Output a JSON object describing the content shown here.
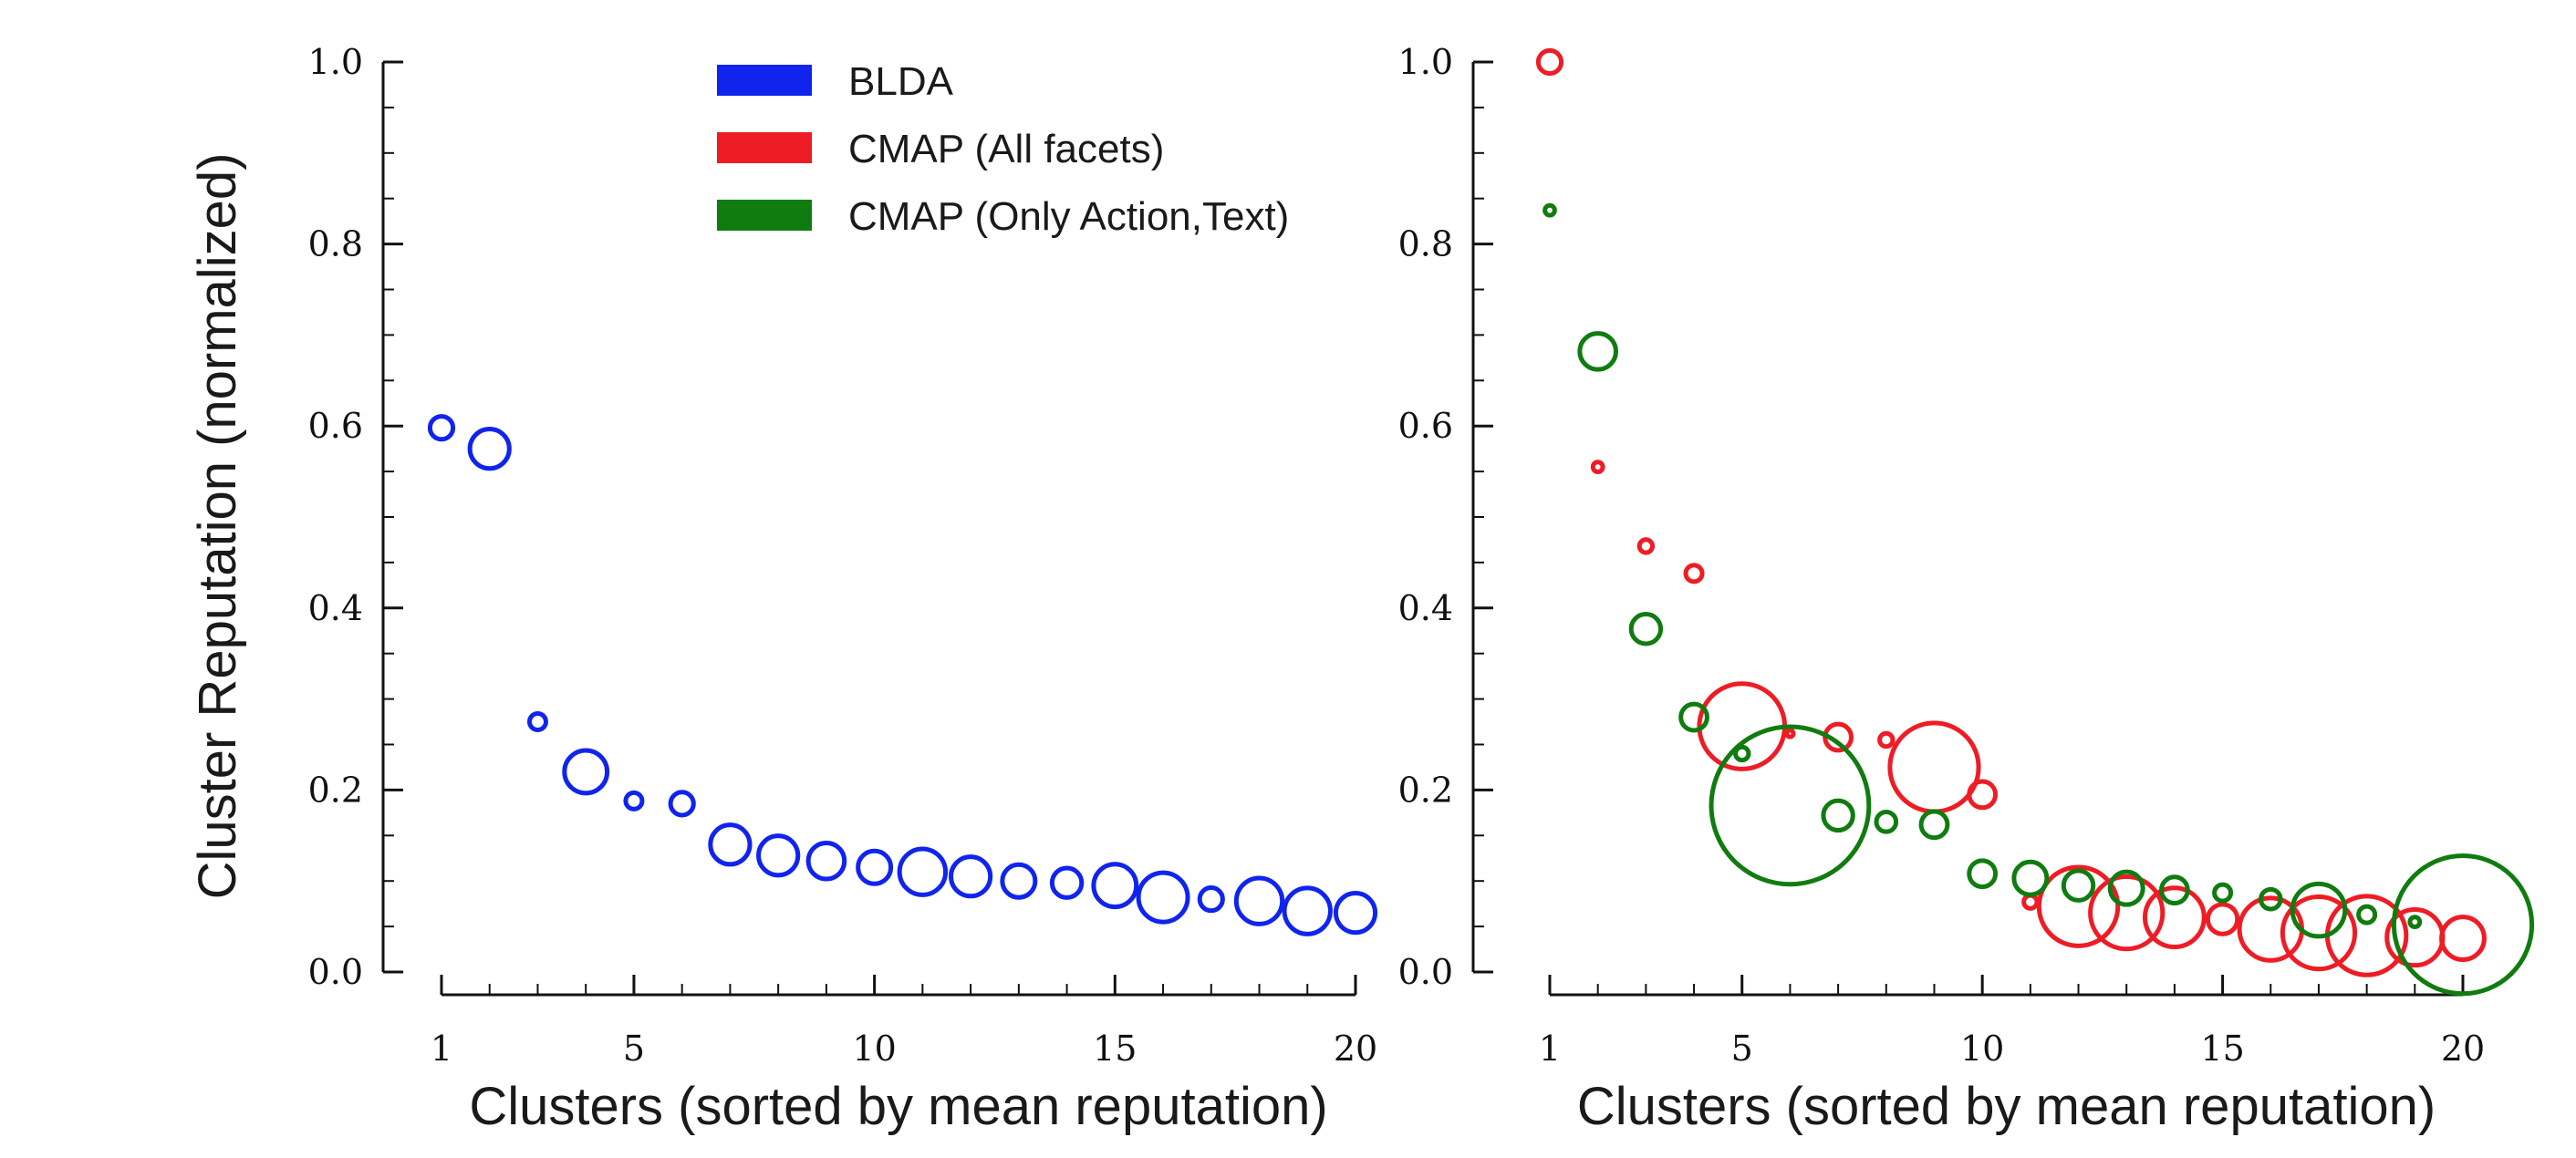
{
  "chart_data": [
    {
      "type": "scatter",
      "xlabel": "Clusters (sorted by mean reputation)",
      "ylabel": "Cluster Reputation (normalized)",
      "xlim": [
        1,
        20
      ],
      "ylim": [
        0,
        1
      ],
      "x_ticks": [
        "1",
        "5",
        "10",
        "15",
        "20"
      ],
      "y_ticks": [
        "0.0",
        "0.2",
        "0.4",
        "0.6",
        "0.8",
        "1.0"
      ],
      "legend": {
        "placement": "top-right",
        "entries": [
          {
            "label": "BLDA",
            "color": "#1024ee"
          },
          {
            "label": "CMAP (All facets)",
            "color": "#ee1c24"
          },
          {
            "label": "CMAP (Only Action,Text)",
            "color": "#107c10"
          }
        ]
      },
      "series": [
        {
          "name": "BLDA",
          "color": "#1024ee",
          "marker": "open-circle",
          "x": [
            1,
            2,
            3,
            4,
            5,
            6,
            7,
            8,
            9,
            10,
            11,
            12,
            13,
            14,
            15,
            16,
            17,
            18,
            19,
            20
          ],
          "y": [
            0.598,
            0.575,
            0.275,
            0.22,
            0.188,
            0.185,
            0.14,
            0.128,
            0.122,
            0.115,
            0.11,
            0.105,
            0.1,
            0.098,
            0.095,
            0.082,
            0.08,
            0.078,
            0.067,
            0.065
          ],
          "size": [
            7,
            12,
            5,
            13,
            5,
            7,
            12,
            12,
            11,
            10,
            14,
            12,
            10,
            9,
            13,
            15,
            7,
            14,
            14,
            12
          ]
        }
      ]
    },
    {
      "type": "scatter",
      "xlabel": "Clusters (sorted by mean reputation)",
      "ylabel": "",
      "xlim": [
        1,
        20
      ],
      "ylim": [
        0,
        1
      ],
      "x_ticks": [
        "1",
        "5",
        "10",
        "15",
        "20"
      ],
      "y_ticks": [
        "0.0",
        "0.2",
        "0.4",
        "0.6",
        "0.8",
        "1.0"
      ],
      "series": [
        {
          "name": "CMAP (All facets)",
          "color": "#ee1c24",
          "marker": "open-circle",
          "x": [
            1,
            2,
            3,
            4,
            5,
            6,
            7,
            8,
            9,
            10,
            11,
            12,
            13,
            14,
            15,
            16,
            17,
            18,
            19,
            20
          ],
          "y": [
            1.0,
            0.555,
            0.468,
            0.438,
            0.27,
            0.262,
            0.258,
            0.255,
            0.225,
            0.195,
            0.077,
            0.072,
            0.065,
            0.06,
            0.058,
            0.047,
            0.043,
            0.04,
            0.038,
            0.037
          ],
          "size": [
            7,
            3,
            4,
            5,
            26,
            2,
            8,
            4,
            27,
            8,
            4,
            24,
            22,
            18,
            9,
            19,
            22,
            24,
            17,
            13
          ]
        },
        {
          "name": "CMAP (Only Action,Text)",
          "color": "#107c10",
          "marker": "open-circle",
          "x": [
            1,
            2,
            3,
            4,
            5,
            6,
            7,
            8,
            9,
            10,
            11,
            12,
            13,
            14,
            15,
            16,
            17,
            18,
            19,
            20
          ],
          "y": [
            0.837,
            0.682,
            0.377,
            0.28,
            0.24,
            0.183,
            0.172,
            0.165,
            0.162,
            0.108,
            0.103,
            0.095,
            0.092,
            0.09,
            0.087,
            0.08,
            0.068,
            0.063,
            0.055,
            0.052
          ],
          "size": [
            3,
            11,
            9,
            8,
            4,
            48,
            9,
            6,
            8,
            8,
            10,
            9,
            10,
            8,
            5,
            6,
            16,
            5,
            3,
            42
          ]
        }
      ]
    }
  ]
}
